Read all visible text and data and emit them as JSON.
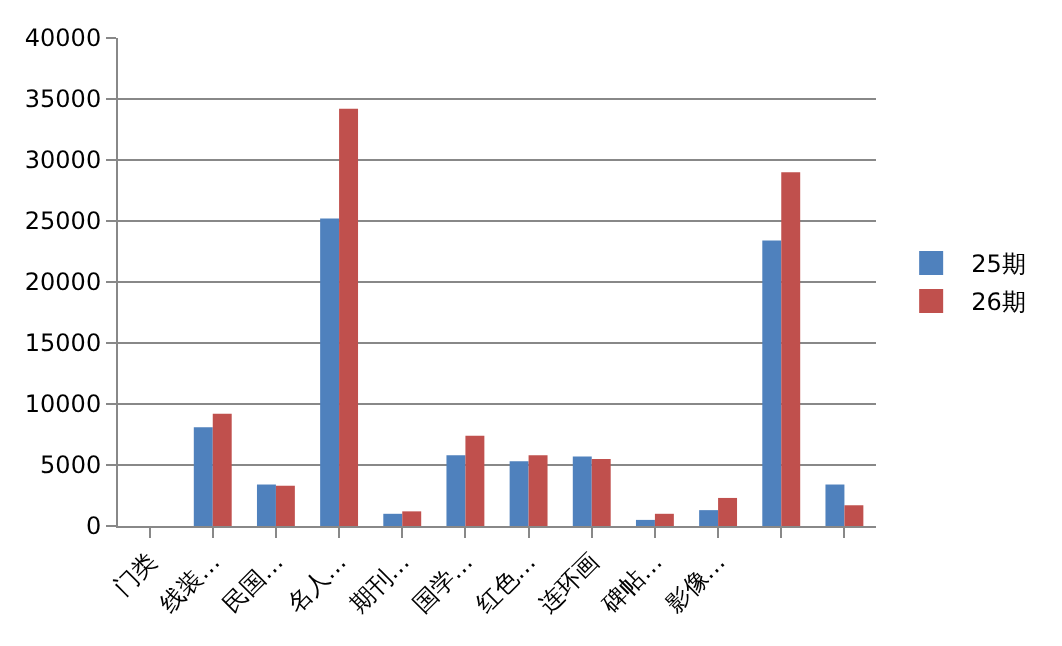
{
  "chart_data": {
    "type": "bar",
    "categories": [
      "门类",
      "线装…",
      "民国…",
      "名人…",
      "期刊…",
      "国学…",
      "红色…",
      "连环画",
      "碑帖…",
      "影像…",
      null,
      null
    ],
    "series": [
      {
        "name": "25期",
        "color": "#4f81bd",
        "values": [
          null,
          8100,
          3400,
          25200,
          1000,
          5800,
          5300,
          5700,
          500,
          1300,
          23400,
          3400
        ]
      },
      {
        "name": "26期",
        "color": "#c0504d",
        "values": [
          null,
          9200,
          3300,
          34200,
          1200,
          7400,
          5800,
          5500,
          1000,
          2300,
          29000,
          1700
        ]
      }
    ],
    "ylim": [
      0,
      40000
    ],
    "yticks": [
      0,
      5000,
      10000,
      15000,
      20000,
      25000,
      30000,
      35000,
      40000
    ],
    "grid": "y",
    "legend": "right"
  }
}
